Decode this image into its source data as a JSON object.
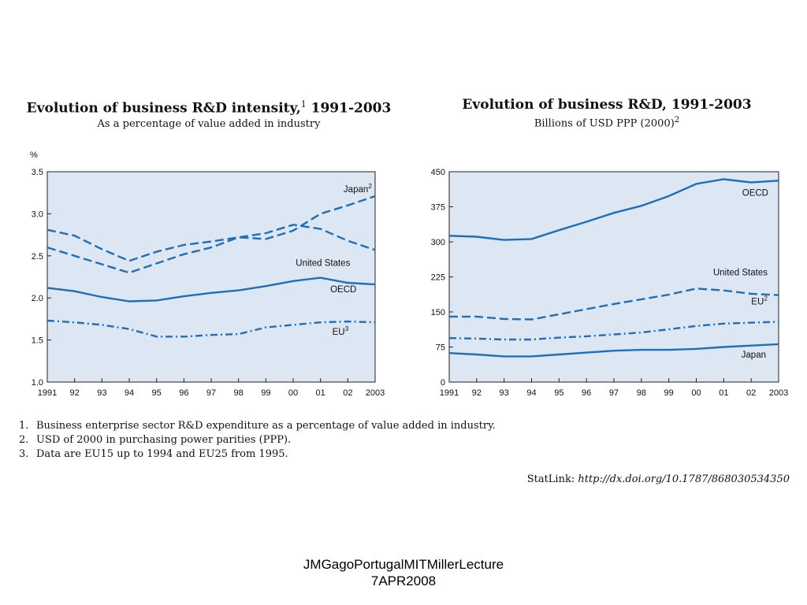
{
  "chart_data": [
    {
      "type": "line",
      "title": "Evolution of business R&D intensity,",
      "title_sup": "1",
      "title_tail": " 1991-2003",
      "subtitle": "As a percentage of value added in industry",
      "ylabel": "%",
      "xlabel": "",
      "ylim": [
        1.0,
        3.5
      ],
      "yticks": [
        "1.0",
        "1.5",
        "2.0",
        "2.5",
        "3.0",
        "3.5"
      ],
      "ytick_values": [
        1.0,
        1.5,
        2.0,
        2.5,
        3.0,
        3.5
      ],
      "categories": [
        "1991",
        "92",
        "93",
        "94",
        "95",
        "96",
        "97",
        "98",
        "99",
        "00",
        "01",
        "02",
        "2003"
      ],
      "background": "#dde6f3",
      "line_color": "#1f6fb8",
      "series": [
        {
          "name": "Japan",
          "name_sup": "2",
          "dash": "long",
          "label_at": 12,
          "values": [
            2.81,
            2.74,
            2.58,
            2.44,
            2.55,
            2.63,
            2.67,
            2.72,
            2.7,
            2.8,
            3.0,
            3.1,
            3.21
          ]
        },
        {
          "name": "United States",
          "name_sup": "",
          "dash": "long",
          "label_at": 11,
          "values": [
            2.6,
            2.5,
            2.4,
            2.3,
            2.41,
            2.52,
            2.6,
            2.72,
            2.77,
            2.87,
            2.82,
            2.68,
            2.57
          ]
        },
        {
          "name": "OECD",
          "name_sup": "",
          "dash": "solid",
          "label_at": 11,
          "values": [
            2.12,
            2.08,
            2.01,
            1.96,
            1.97,
            2.02,
            2.06,
            2.09,
            2.14,
            2.2,
            2.24,
            2.18,
            2.16
          ]
        },
        {
          "name": "EU",
          "name_sup": "3",
          "dash": "dashdot",
          "label_at": 11,
          "values": [
            1.73,
            1.71,
            1.68,
            1.63,
            1.54,
            1.54,
            1.56,
            1.57,
            1.65,
            1.68,
            1.71,
            1.72,
            1.71
          ]
        }
      ]
    },
    {
      "type": "line",
      "title": "Evolution of business R&D, 1991-2003",
      "title_sup": "",
      "title_tail": "",
      "subtitle": "Billions of USD PPP (2000)",
      "subtitle_sup": "2",
      "ylabel": "",
      "xlabel": "",
      "ylim": [
        0,
        450
      ],
      "yticks": [
        "0",
        "75",
        "150",
        "225",
        "300",
        "375",
        "450"
      ],
      "ytick_values": [
        0,
        75,
        150,
        225,
        300,
        375,
        450
      ],
      "categories": [
        "1991",
        "92",
        "93",
        "94",
        "95",
        "96",
        "97",
        "98",
        "99",
        "00",
        "01",
        "02",
        "2003"
      ],
      "background": "#dde6f3",
      "line_color": "#1f6fb8",
      "series": [
        {
          "name": "OECD",
          "name_sup": "",
          "dash": "solid",
          "label_at": 12,
          "values": [
            313,
            311,
            304,
            306,
            325,
            343,
            362,
            377,
            398,
            424,
            434,
            427,
            431
          ]
        },
        {
          "name": "United States",
          "name_sup": "",
          "dash": "long",
          "label_at": 12,
          "values": [
            140,
            140,
            135,
            134,
            145,
            156,
            167,
            177,
            187,
            200,
            196,
            189,
            186
          ]
        },
        {
          "name": "EU",
          "name_sup": "2",
          "dash": "dashdot",
          "label_at": 12,
          "values": [
            94,
            93,
            91,
            91,
            95,
            98,
            102,
            106,
            113,
            120,
            125,
            127,
            129
          ]
        },
        {
          "name": "Japan",
          "name_sup": "",
          "dash": "solid",
          "label_at": 12,
          "values": [
            62,
            59,
            55,
            55,
            59,
            63,
            67,
            69,
            69,
            71,
            75,
            78,
            81
          ]
        }
      ]
    }
  ],
  "notes": [
    {
      "num": "1.",
      "text": "Business enterprise sector R&D expenditure as a percentage of value added in industry."
    },
    {
      "num": "2.",
      "text": "USD of 2000 in purchasing power parities (PPP)."
    },
    {
      "num": "3.",
      "text": "Data are EU15 up to 1994 and EU25 from 1995."
    }
  ],
  "statlink": {
    "label": "StatLink:",
    "url": "http://dx.doi.org/10.1787/868030534350"
  },
  "footer": {
    "line1": "JMGagoPortugalMITMillerLecture",
    "line2": "7APR2008"
  }
}
